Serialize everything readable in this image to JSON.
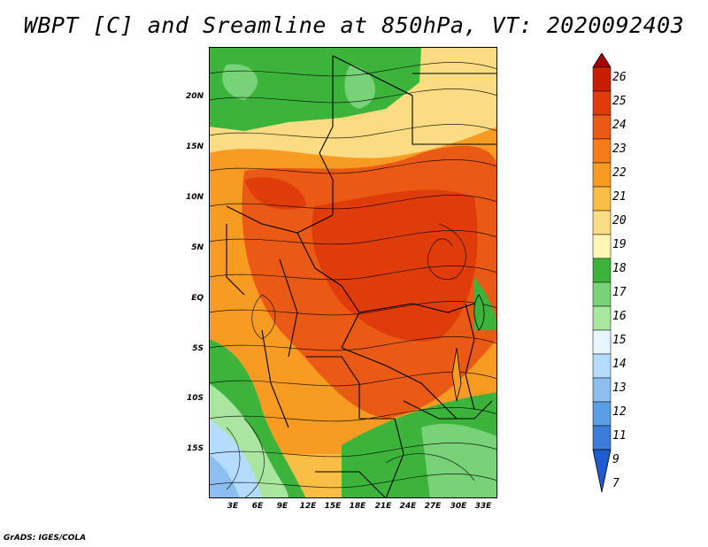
{
  "title": "WBPT [C] and Sreamline at 850hPa, VT: 2020092403",
  "credit": "GrADS: IGES/COLA",
  "map": {
    "variable": "Wet-bulb potential temperature with streamlines",
    "level": "850hPa",
    "latitude_labels": [
      "20N",
      "15N",
      "10N",
      "5N",
      "EQ",
      "5S",
      "10S",
      "15S"
    ],
    "longitude_labels": [
      "3E",
      "6E",
      "9E",
      "12E",
      "15E",
      "18E",
      "21E",
      "24E",
      "27E",
      "30E",
      "33E"
    ]
  },
  "colorbar": {
    "labels": [
      "26",
      "25",
      "24",
      "23",
      "22",
      "21",
      "20",
      "19",
      "18",
      "17",
      "16",
      "15",
      "14",
      "13",
      "12",
      "11",
      "9",
      "7"
    ],
    "colors": [
      "#a50000",
      "#c81e00",
      "#e03c0a",
      "#eb5a14",
      "#f57d19",
      "#f79b23",
      "#f9be46",
      "#fbdc82",
      "#fff5b4",
      "#3cb43c",
      "#78d278",
      "#aae6a0",
      "#e6f5ff",
      "#b4dcff",
      "#8cbef0",
      "#5a9ee6",
      "#3c7ddc",
      "#1e5ad2"
    ]
  }
}
